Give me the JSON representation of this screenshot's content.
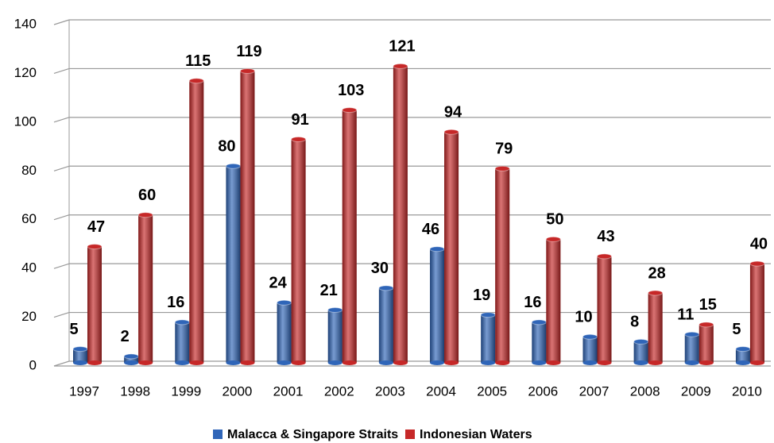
{
  "chart_data": {
    "type": "bar",
    "categories": [
      "1997",
      "1998",
      "1999",
      "2000",
      "2001",
      "2002",
      "2003",
      "2004",
      "2005",
      "2006",
      "2007",
      "2008",
      "2009",
      "2010"
    ],
    "series": [
      {
        "name": "Malacca & Singapore Straits",
        "color": "#2f65b8",
        "values": [
          5,
          2,
          16,
          80,
          24,
          21,
          30,
          46,
          19,
          16,
          10,
          8,
          11,
          5
        ]
      },
      {
        "name": "Indonesian Waters",
        "color": "#c62828",
        "values": [
          47,
          60,
          115,
          119,
          91,
          103,
          121,
          94,
          79,
          50,
          43,
          28,
          15,
          40
        ]
      }
    ],
    "ylim": [
      0,
      140
    ],
    "yticks": [
      0,
      20,
      40,
      60,
      80,
      100,
      120,
      140
    ],
    "grid": true,
    "legend": "bottom"
  }
}
